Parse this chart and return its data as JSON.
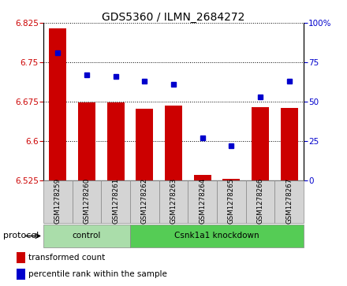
{
  "title": "GDS5360 / ILMN_2684272",
  "samples": [
    "GSM1278259",
    "GSM1278260",
    "GSM1278261",
    "GSM1278262",
    "GSM1278263",
    "GSM1278264",
    "GSM1278265",
    "GSM1278266",
    "GSM1278267"
  ],
  "bar_values": [
    6.815,
    6.674,
    6.673,
    6.662,
    6.668,
    6.535,
    6.528,
    6.665,
    6.663
  ],
  "percentile_values": [
    81,
    67,
    66,
    63,
    61,
    27,
    22,
    53,
    63
  ],
  "ylim_left": [
    6.525,
    6.825
  ],
  "ylim_right": [
    0,
    100
  ],
  "yticks_left": [
    6.525,
    6.6,
    6.675,
    6.75,
    6.825
  ],
  "yticks_right": [
    0,
    25,
    50,
    75,
    100
  ],
  "bar_color": "#cc0000",
  "dot_color": "#0000cc",
  "base_value": 6.525,
  "groups": [
    {
      "label": "control",
      "start": 0,
      "end": 2,
      "color": "#aaddaa"
    },
    {
      "label": "Csnk1a1 knockdown",
      "start": 3,
      "end": 8,
      "color": "#55cc55"
    }
  ],
  "protocol_label": "protocol",
  "legend_items": [
    {
      "label": "transformed count",
      "color": "#cc0000"
    },
    {
      "label": "percentile rank within the sample",
      "color": "#0000cc"
    }
  ],
  "tick_label_color_left": "#cc0000",
  "tick_label_color_right": "#0000cc",
  "sample_box_color": "#d4d4d4",
  "sample_box_edge": "#888888"
}
